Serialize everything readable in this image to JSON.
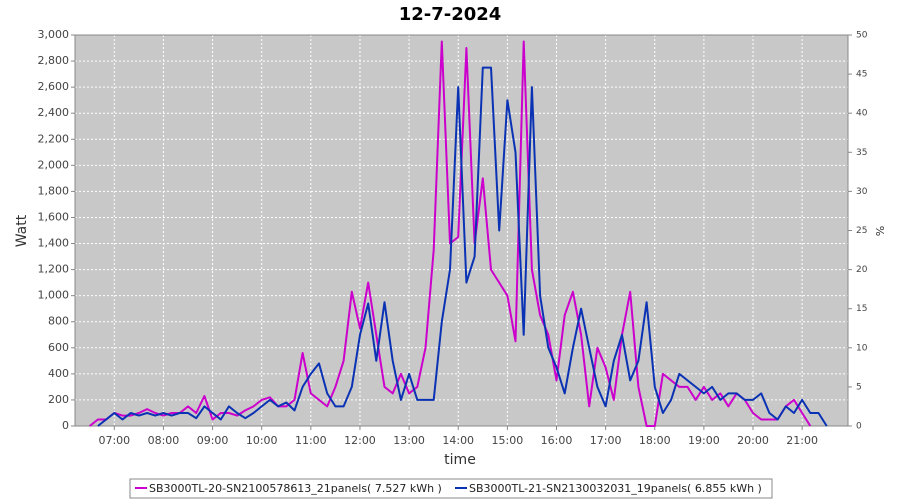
{
  "chart_data": {
    "type": "line",
    "title": "12-7-2024",
    "x_label": "time",
    "y_label": "Watt",
    "y2_label": "%",
    "x": [
      "06:30",
      "06:40",
      "06:50",
      "07:00",
      "07:10",
      "07:20",
      "07:30",
      "07:40",
      "07:50",
      "08:00",
      "08:10",
      "08:20",
      "08:30",
      "08:40",
      "08:50",
      "09:00",
      "09:10",
      "09:20",
      "09:30",
      "09:40",
      "09:50",
      "10:00",
      "10:10",
      "10:20",
      "10:30",
      "10:40",
      "10:50",
      "11:00",
      "11:10",
      "11:20",
      "11:30",
      "11:40",
      "11:50",
      "12:00",
      "12:10",
      "12:20",
      "12:30",
      "12:40",
      "12:50",
      "13:00",
      "13:10",
      "13:20",
      "13:30",
      "13:40",
      "13:50",
      "14:00",
      "14:10",
      "14:20",
      "14:30",
      "14:40",
      "14:50",
      "15:00",
      "15:10",
      "15:20",
      "15:30",
      "15:40",
      "15:50",
      "16:00",
      "16:10",
      "16:20",
      "16:30",
      "16:40",
      "16:50",
      "17:00",
      "17:10",
      "17:20",
      "17:30",
      "17:40",
      "17:50",
      "18:00",
      "18:10",
      "18:20",
      "18:30",
      "18:40",
      "18:50",
      "19:00",
      "19:10",
      "19:20",
      "19:30",
      "19:40",
      "19:50",
      "20:00",
      "20:10",
      "20:20",
      "20:30",
      "20:40",
      "20:50",
      "21:00",
      "21:10",
      "21:20",
      "21:30"
    ],
    "series": [
      {
        "name": "SB3000TL-20-SN2100578613_21panels( 7.527 kWh )",
        "color": "#cc00cc",
        "values": [
          0,
          50,
          50,
          100,
          80,
          80,
          100,
          130,
          100,
          80,
          100,
          100,
          150,
          100,
          230,
          50,
          100,
          100,
          80,
          120,
          150,
          200,
          220,
          150,
          150,
          200,
          560,
          250,
          200,
          150,
          300,
          500,
          1030,
          750,
          1100,
          700,
          300,
          250,
          400,
          250,
          300,
          600,
          1350,
          2950,
          1400,
          1450,
          2900,
          1400,
          1900,
          1200,
          1100,
          1000,
          650,
          2950,
          1200,
          850,
          700,
          350,
          850,
          1030,
          700,
          150,
          600,
          450,
          200,
          700,
          1030,
          300,
          0,
          0,
          400,
          350,
          300,
          300,
          200,
          300,
          200,
          250,
          150,
          250,
          200,
          100,
          50,
          50,
          50,
          150,
          200,
          100,
          0,
          null,
          null
        ]
      },
      {
        "name": "SB3000TL-21-SN2130032031_19panels( 6.855 kWh )",
        "color": "#0a32b4",
        "values": [
          null,
          0,
          50,
          100,
          50,
          100,
          80,
          100,
          80,
          100,
          80,
          100,
          100,
          60,
          150,
          100,
          50,
          150,
          100,
          60,
          100,
          150,
          200,
          150,
          180,
          120,
          300,
          400,
          480,
          250,
          150,
          150,
          300,
          700,
          940,
          500,
          950,
          500,
          200,
          400,
          200,
          200,
          200,
          800,
          1200,
          2600,
          1100,
          1300,
          2750,
          2750,
          1500,
          2500,
          2100,
          700,
          2600,
          1000,
          600,
          450,
          250,
          600,
          900,
          600,
          300,
          150,
          500,
          700,
          350,
          500,
          950,
          300,
          100,
          200,
          400,
          350,
          300,
          250,
          300,
          200,
          250,
          250,
          200,
          200,
          250,
          100,
          50,
          150,
          100,
          200,
          100,
          100,
          0
        ]
      }
    ],
    "xlim": [
      "06:12",
      "21:56"
    ],
    "xticks": [
      "07:00",
      "08:00",
      "09:00",
      "10:00",
      "11:00",
      "12:00",
      "13:00",
      "14:00",
      "15:00",
      "16:00",
      "17:00",
      "18:00",
      "19:00",
      "20:00",
      "21:00"
    ],
    "ylim": [
      0,
      3000
    ],
    "yticks": [
      0,
      200,
      400,
      600,
      800,
      {
        "value": 1000,
        "label": "1,000"
      },
      {
        "value": 1200,
        "label": "1,200"
      },
      {
        "value": 1400,
        "label": "1,400"
      },
      {
        "value": 1600,
        "label": "1,600"
      },
      {
        "value": 1800,
        "label": "1,800"
      },
      {
        "value": 2000,
        "label": "2,000"
      },
      {
        "value": 2200,
        "label": "2,200"
      },
      {
        "value": 2400,
        "label": "2,400"
      },
      {
        "value": 2600,
        "label": "2,600"
      },
      {
        "value": 2800,
        "label": "2,800"
      },
      {
        "value": 3000,
        "label": "3,000"
      }
    ],
    "y2lim": [
      0,
      50
    ],
    "y2ticks": [
      0,
      5,
      10,
      15,
      20,
      25,
      30,
      35,
      40,
      45,
      50
    ],
    "grid": true,
    "legend": "bottom"
  }
}
